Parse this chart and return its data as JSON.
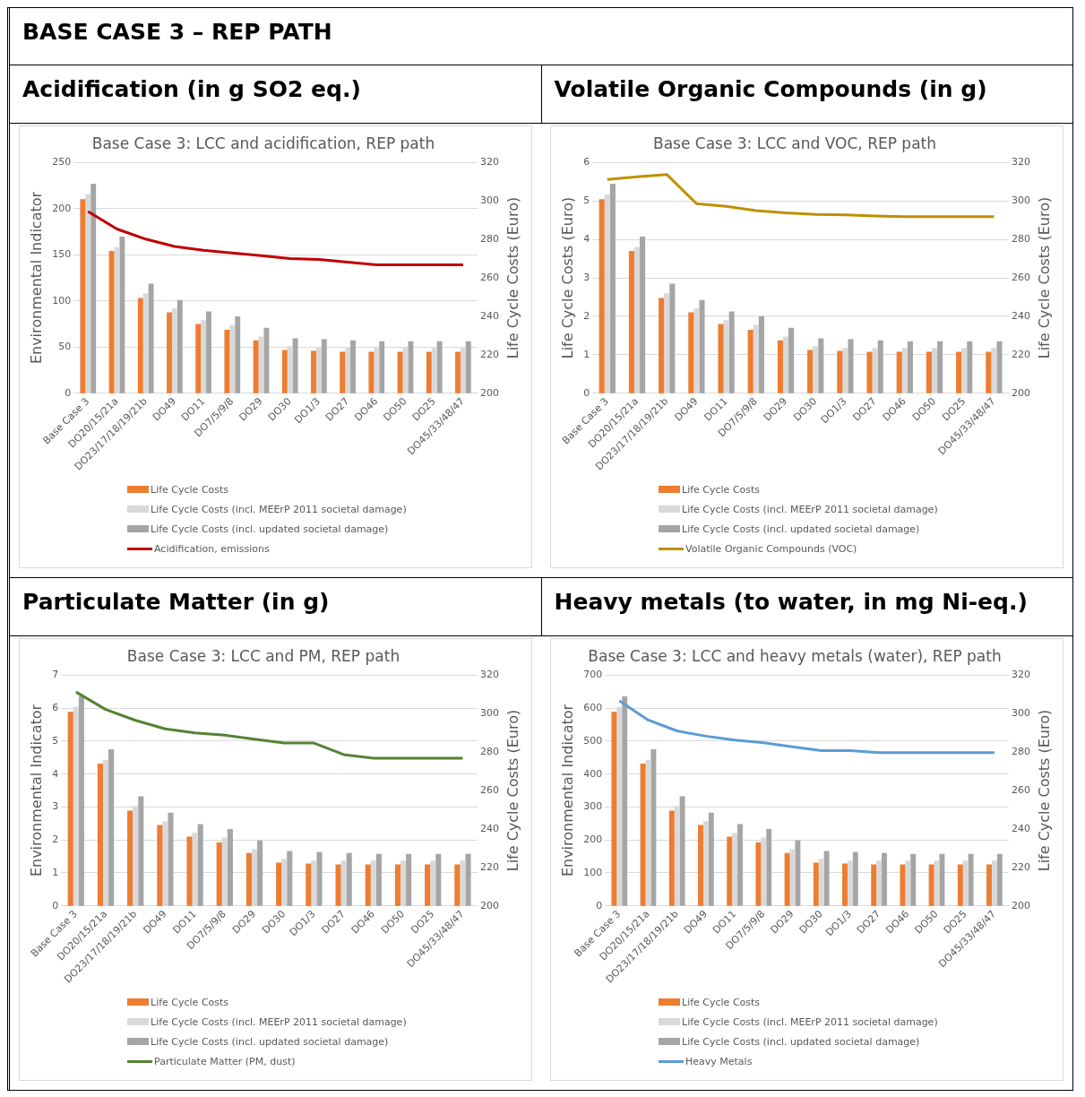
{
  "chart_data": [
    {
      "type": "bar",
      "title": "Base Case 3: LCC and acidification, REP path",
      "subtitle": "Acidification (in g SO2 eq.)",
      "annotations": [
        "BASE CASE 3 – REP PATH"
      ],
      "ylabel": "Environmental Indicator",
      "y2label": "Life Cycle Costs (Euro)",
      "categories": [
        "Base Case 3",
        "DO20/15/21a",
        "DO23/17/18/19/21b",
        "DO49",
        "DO11",
        "DO7/5/9/8",
        "DO29",
        "DO30",
        "DO1/3",
        "DO27",
        "DO46",
        "DO50",
        "DO25",
        "DO45/33/48/47"
      ],
      "ylim": [
        0,
        250
      ],
      "yticks": [
        0,
        50,
        100,
        150,
        200,
        250
      ],
      "y2lim": [
        200,
        320
      ],
      "y2ticks": [
        200,
        220,
        240,
        260,
        280,
        300,
        320
      ],
      "grid": "y",
      "legend": "bottom",
      "marker": "none",
      "series": [
        {
          "name": "Life Cycle Costs",
          "axis": "y2",
          "color": "#ed7d31",
          "values": [
            301,
            274,
            249.5,
            242,
            236,
            233,
            227.5,
            222.5,
            222,
            221.5,
            221.5,
            221.5,
            221.5,
            221.5
          ]
        },
        {
          "name": "Life Cycle Costs (incl. MEErP 2011 societal damage)",
          "axis": "y2",
          "color": "#d9d9d9",
          "values": [
            303.5,
            276,
            252,
            244,
            238,
            235.5,
            229.5,
            224.5,
            223.5,
            223.5,
            223.5,
            223.5,
            223.5,
            223.5
          ]
        },
        {
          "name": "Life Cycle Costs (incl. updated societal damage)",
          "axis": "y2",
          "color": "#a5a5a5",
          "values": [
            309,
            281.5,
            257,
            248.5,
            242.5,
            240,
            234,
            228.5,
            228,
            227.5,
            227,
            227,
            227,
            227
          ]
        },
        {
          "name": "Acidification, emissions",
          "type": "line",
          "color": "#c00000",
          "values": [
            197,
            178,
            167,
            159,
            155,
            152,
            149,
            146,
            145,
            142,
            139,
            139,
            139,
            139
          ]
        }
      ]
    },
    {
      "type": "bar",
      "title": "Base Case 3: LCC and VOC, REP path",
      "subtitle": "Volatile Organic Compounds (in g)",
      "ylabel": "Life Cycle Costs (Euro)",
      "y2label": "Life Cycle Costs (Euro)",
      "categories": [
        "Base Case 3",
        "DO20/15/21a",
        "DO23/17/18/19/21b",
        "DO49",
        "DO11",
        "DO7/5/9/8",
        "DO29",
        "DO30",
        "DO1/3",
        "DO27",
        "DO46",
        "DO50",
        "DO25",
        "DO45/33/48/47"
      ],
      "ylim": [
        0,
        6
      ],
      "yticks": [
        0,
        1,
        2,
        3,
        4,
        5,
        6
      ],
      "y2lim": [
        200,
        320
      ],
      "y2ticks": [
        200,
        220,
        240,
        260,
        280,
        300,
        320
      ],
      "grid": "y",
      "legend": "bottom",
      "marker": "none",
      "series": [
        {
          "name": "Life Cycle Costs",
          "axis": "y2",
          "color": "#ed7d31",
          "values": [
            301,
            274,
            249.5,
            242,
            236,
            233,
            227.5,
            222.5,
            222,
            221.5,
            221.5,
            221.5,
            221.5,
            221.5
          ]
        },
        {
          "name": "Life Cycle Costs (incl. MEErP 2011 societal damage)",
          "axis": "y2",
          "color": "#d9d9d9",
          "values": [
            303.5,
            276,
            252,
            244,
            238,
            235.5,
            229.5,
            224.5,
            223.5,
            223.5,
            223.5,
            223.5,
            223.5,
            223.5
          ]
        },
        {
          "name": "Life Cycle Costs (incl. updated societal damage)",
          "axis": "y2",
          "color": "#a5a5a5",
          "values": [
            309,
            281.5,
            257,
            248.5,
            242.5,
            240,
            234,
            228.5,
            228,
            227.5,
            227,
            227,
            227,
            227
          ]
        },
        {
          "name": "Volatile Organic Compounds (VOC)",
          "type": "line",
          "color": "#bf9000",
          "values": [
            5.56,
            5.63,
            5.69,
            4.93,
            4.86,
            4.75,
            4.69,
            4.65,
            4.64,
            4.61,
            4.59,
            4.59,
            4.59,
            4.59
          ]
        }
      ]
    },
    {
      "type": "bar",
      "title": "Base Case 3: LCC and PM, REP path",
      "subtitle": "Particulate Matter (in g)",
      "ylabel": "Environmental Indicator",
      "y2label": "Life Cycle Costs (Euro)",
      "categories": [
        "Base Case 3",
        "DO20/15/21a",
        "DO23/17/18/19/21b",
        "DO49",
        "DO11",
        "DO7/5/9/8",
        "DO29",
        "DO30",
        "DO1/3",
        "DO27",
        "DO46",
        "DO50",
        "DO25",
        "DO45/33/48/47"
      ],
      "ylim": [
        0,
        7
      ],
      "yticks": [
        0,
        1,
        2,
        3,
        4,
        5,
        6,
        7
      ],
      "y2lim": [
        200,
        320
      ],
      "y2ticks": [
        200,
        220,
        240,
        260,
        280,
        300,
        320
      ],
      "grid": "y",
      "legend": "bottom",
      "marker": "none",
      "series": [
        {
          "name": "Life Cycle Costs",
          "axis": "y2",
          "color": "#ed7d31",
          "values": [
            301,
            274,
            249.5,
            242,
            236,
            233,
            227.5,
            222.5,
            222,
            221.5,
            221.5,
            221.5,
            221.5,
            221.5
          ]
        },
        {
          "name": "Life Cycle Costs (incl. MEErP 2011 societal damage)",
          "axis": "y2",
          "color": "#d9d9d9",
          "values": [
            303.5,
            276,
            252,
            244,
            238,
            235.5,
            229.5,
            224.5,
            223.5,
            223.5,
            223.5,
            223.5,
            223.5,
            223.5
          ]
        },
        {
          "name": "Life Cycle Costs (incl. updated societal damage)",
          "axis": "y2",
          "color": "#a5a5a5",
          "values": [
            309,
            281.5,
            257,
            248.5,
            242.5,
            240,
            234,
            228.5,
            228,
            227.5,
            227,
            227,
            227,
            227
          ]
        },
        {
          "name": "Particulate Matter (PM, dust)",
          "type": "line",
          "color": "#548235",
          "values": [
            6.49,
            5.96,
            5.63,
            5.37,
            5.25,
            5.18,
            5.06,
            4.94,
            4.94,
            4.59,
            4.48,
            4.48,
            4.48,
            4.48
          ]
        }
      ]
    },
    {
      "type": "bar",
      "title": "Base Case 3: LCC and heavy metals (water), REP path",
      "subtitle": "Heavy metals (to water, in mg Ni-eq.)",
      "ylabel": "Environmental Indicator",
      "y2label": "Life Cycle Costs (Euro)",
      "categories": [
        "Base Case 3",
        "DO20/15/21a",
        "DO23/17/18/19/21b",
        "DO49",
        "DO11",
        "DO7/5/9/8",
        "DO29",
        "DO30",
        "DO1/3",
        "DO27",
        "DO46",
        "DO50",
        "DO25",
        "DO45/33/48/47"
      ],
      "ylim": [
        0,
        700
      ],
      "yticks": [
        0,
        100,
        200,
        300,
        400,
        500,
        600,
        700
      ],
      "y2lim": [
        200,
        320
      ],
      "y2ticks": [
        200,
        220,
        240,
        260,
        280,
        300,
        320
      ],
      "grid": "y",
      "legend": "bottom",
      "marker": "none",
      "series": [
        {
          "name": "Life Cycle Costs",
          "axis": "y2",
          "color": "#ed7d31",
          "values": [
            301,
            274,
            249.5,
            242,
            236,
            233,
            227.5,
            222.5,
            222,
            221.5,
            221.5,
            221.5,
            221.5,
            221.5
          ]
        },
        {
          "name": "Life Cycle Costs (incl. MEErP 2011 societal damage)",
          "axis": "y2",
          "color": "#d9d9d9",
          "values": [
            303.5,
            276,
            252,
            244,
            238,
            235.5,
            229.5,
            224.5,
            223.5,
            223.5,
            223.5,
            223.5,
            223.5,
            223.5
          ]
        },
        {
          "name": "Life Cycle Costs (incl. updated societal damage)",
          "axis": "y2",
          "color": "#a5a5a5",
          "values": [
            309,
            281.5,
            257,
            248.5,
            242.5,
            240,
            234,
            228.5,
            228,
            227.5,
            227,
            227,
            227,
            227
          ]
        },
        {
          "name": "Heavy Metals",
          "type": "line",
          "color": "#5b9bd5",
          "values": [
            622,
            564,
            531,
            515,
            503,
            495,
            483,
            471,
            471,
            465,
            465,
            465,
            465,
            465
          ]
        }
      ]
    }
  ]
}
